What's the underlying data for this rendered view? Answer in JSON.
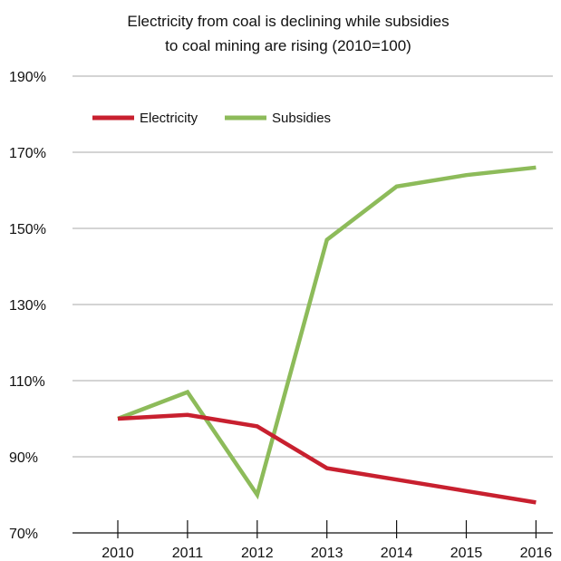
{
  "chart_data": {
    "type": "line",
    "title_lines": [
      "Electricity from coal is declining while subsidies",
      "to coal mining are rising (2010=100)"
    ],
    "xlabel": "",
    "ylabel": "",
    "categories": [
      "2010",
      "2011",
      "2012",
      "2013",
      "2014",
      "2015",
      "2016"
    ],
    "ylim": [
      70,
      190
    ],
    "yticks": [
      70,
      90,
      110,
      130,
      150,
      170,
      190
    ],
    "ytick_labels": [
      "70%",
      "90%",
      "110%",
      "130%",
      "150%",
      "170%",
      "190%"
    ],
    "grid": "horizontal",
    "legend_position": "top-left",
    "series": [
      {
        "name": "Electricity",
        "color": "#c8202f",
        "values": [
          100,
          101,
          98,
          87,
          84,
          81,
          78
        ]
      },
      {
        "name": "Subsidies",
        "color": "#8dbb5a",
        "values": [
          100,
          107,
          80,
          147,
          161,
          164,
          166
        ]
      }
    ]
  }
}
